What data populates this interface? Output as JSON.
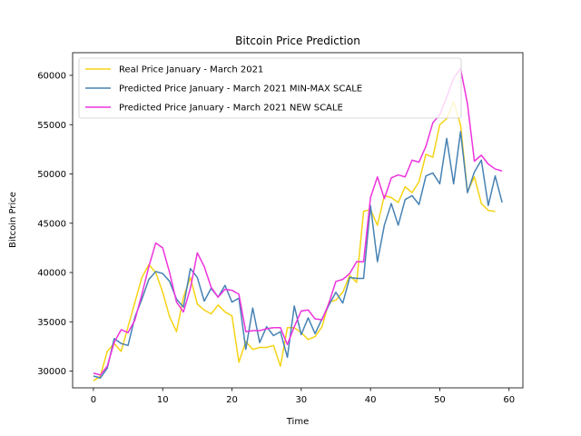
{
  "chart_data": {
    "type": "line",
    "title": "Bitcoin Price Prediction",
    "xlabel": "Time",
    "ylabel": "Bitcoin Price",
    "xlim": [
      -3,
      62
    ],
    "ylim": [
      28300,
      62300
    ],
    "x_ticks": [
      0,
      10,
      20,
      30,
      40,
      50,
      60
    ],
    "y_ticks": [
      30000,
      35000,
      40000,
      45000,
      50000,
      55000,
      60000
    ],
    "legend_position": "top-left",
    "grid": false,
    "series": [
      {
        "name": "Real Price January - March 2021",
        "color": "#f5d315",
        "x": [
          0,
          1,
          2,
          3,
          4,
          5,
          6,
          7,
          8,
          9,
          10,
          11,
          12,
          13,
          14,
          15,
          16,
          17,
          18,
          19,
          20,
          21,
          22,
          23,
          24,
          25,
          26,
          27,
          28,
          29,
          30,
          31,
          32,
          33,
          34,
          35,
          36,
          37,
          38,
          39,
          40,
          41,
          42,
          43,
          44,
          45,
          46,
          47,
          48,
          49,
          50,
          51,
          52,
          53,
          54,
          55,
          56,
          57,
          58
        ],
        "values": [
          29000,
          29500,
          32000,
          32800,
          32000,
          34500,
          37000,
          39500,
          40800,
          40000,
          38000,
          35500,
          34000,
          37500,
          39500,
          36800,
          36200,
          35800,
          36700,
          36000,
          35600,
          30900,
          33000,
          32200,
          32400,
          32400,
          32600,
          30500,
          34400,
          34400,
          33900,
          33200,
          33500,
          34500,
          37000,
          37200,
          38000,
          39700,
          39000,
          46200,
          46400,
          44800,
          47800,
          47600,
          47100,
          48700,
          48100,
          49200,
          52000,
          51700,
          55000,
          55600,
          57300,
          55000,
          48200,
          49700,
          47000,
          46300,
          46200
        ]
      },
      {
        "name": "Predicted Price January - March 2021 MIN-MAX SCALE",
        "color": "#4682b4",
        "x": [
          0,
          1,
          2,
          3,
          4,
          5,
          6,
          7,
          8,
          9,
          10,
          11,
          12,
          13,
          14,
          15,
          16,
          17,
          18,
          19,
          20,
          21,
          22,
          23,
          24,
          25,
          26,
          27,
          28,
          29,
          30,
          31,
          32,
          33,
          34,
          35,
          36,
          37,
          38,
          39,
          40,
          41,
          42,
          43,
          44,
          45,
          46,
          47,
          48,
          49,
          50,
          51,
          52,
          53,
          54,
          55,
          56,
          57,
          58,
          59
        ],
        "values": [
          29500,
          29300,
          30300,
          33300,
          32800,
          32600,
          35500,
          37300,
          39300,
          40100,
          39900,
          39100,
          37300,
          36500,
          40400,
          39500,
          37100,
          38400,
          37500,
          38700,
          37000,
          37400,
          32200,
          36400,
          32900,
          34500,
          33600,
          34000,
          31400,
          36600,
          33700,
          35400,
          33800,
          35300,
          36700,
          38000,
          36900,
          39500,
          39400,
          39400,
          46800,
          41100,
          44800,
          47000,
          44800,
          47400,
          47800,
          46900,
          49800,
          50100,
          49000,
          53600,
          49000,
          54300,
          48100,
          50200,
          51400,
          46800,
          49800,
          47100
        ]
      },
      {
        "name": "Predicted Price January - March 2021 NEW SCALE",
        "color": "#ee33dd",
        "x": [
          0,
          1,
          2,
          3,
          4,
          5,
          6,
          7,
          8,
          9,
          10,
          11,
          12,
          13,
          14,
          15,
          16,
          17,
          18,
          19,
          20,
          21,
          22,
          23,
          24,
          25,
          26,
          27,
          28,
          29,
          30,
          31,
          32,
          33,
          34,
          35,
          36,
          37,
          38,
          39,
          40,
          41,
          42,
          43,
          44,
          45,
          46,
          47,
          48,
          49,
          50,
          51,
          52,
          53,
          54,
          55,
          56,
          57,
          58,
          59
        ],
        "values": [
          29800,
          29600,
          30500,
          32900,
          34200,
          33900,
          35200,
          37800,
          40600,
          43000,
          42500,
          40000,
          37000,
          36000,
          38400,
          42000,
          40600,
          38500,
          37500,
          38300,
          38200,
          37800,
          34000,
          34100,
          34100,
          34300,
          34400,
          34400,
          32700,
          34500,
          36100,
          36200,
          35300,
          35200,
          36900,
          39100,
          39300,
          39900,
          41100,
          41100,
          47600,
          49700,
          47500,
          49600,
          49900,
          49700,
          51400,
          51200,
          52800,
          55200,
          56000,
          57800,
          59700,
          60700,
          57100,
          51300,
          51900,
          51000,
          50500,
          50300
        ]
      }
    ]
  }
}
